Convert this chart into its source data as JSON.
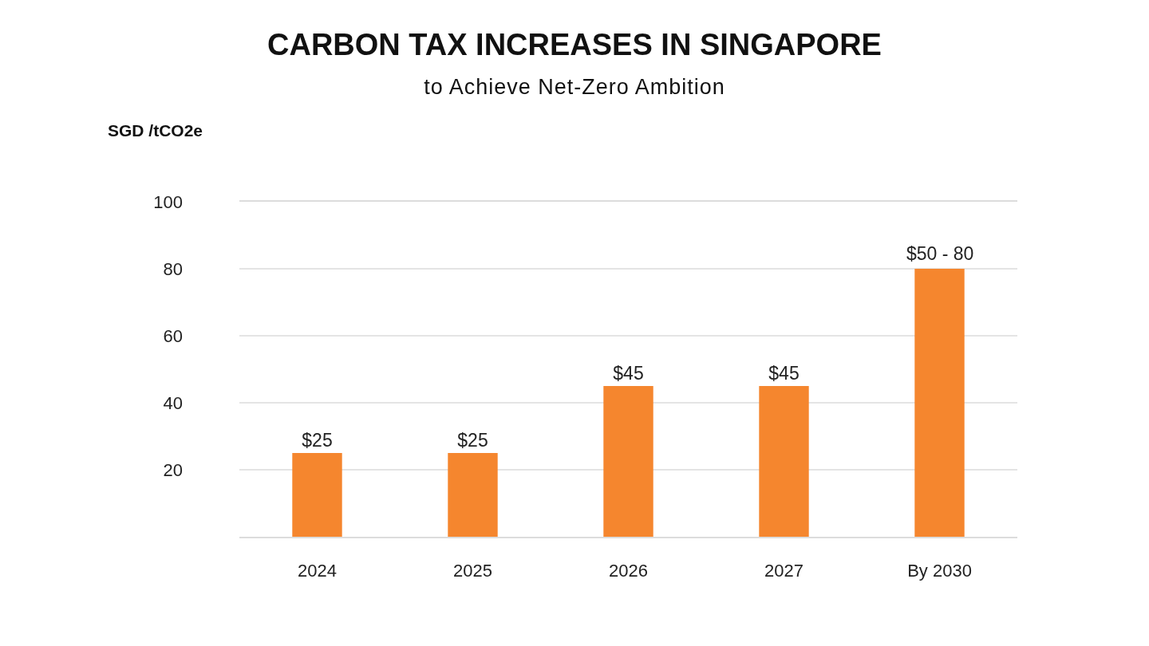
{
  "chart_data": {
    "type": "bar",
    "title": "CARBON TAX INCREASES IN SINGAPORE",
    "subtitle": "to Achieve Net-Zero Ambition",
    "ylabel": "SGD /tCO2e",
    "categories": [
      "2024",
      "2025",
      "2026",
      "2027",
      "By 2030"
    ],
    "values": [
      25,
      25,
      45,
      45,
      80
    ],
    "value_labels": [
      "$25",
      "$25",
      "$45",
      "$45",
      null
    ],
    "annotations": [
      {
        "text": "$50 - 80",
        "x": "By 2030",
        "y": 80
      }
    ],
    "color": "#f5862e",
    "ylim": [
      0,
      100
    ],
    "yticks": [
      20,
      40,
      60,
      80,
      100
    ],
    "grid": "y"
  }
}
